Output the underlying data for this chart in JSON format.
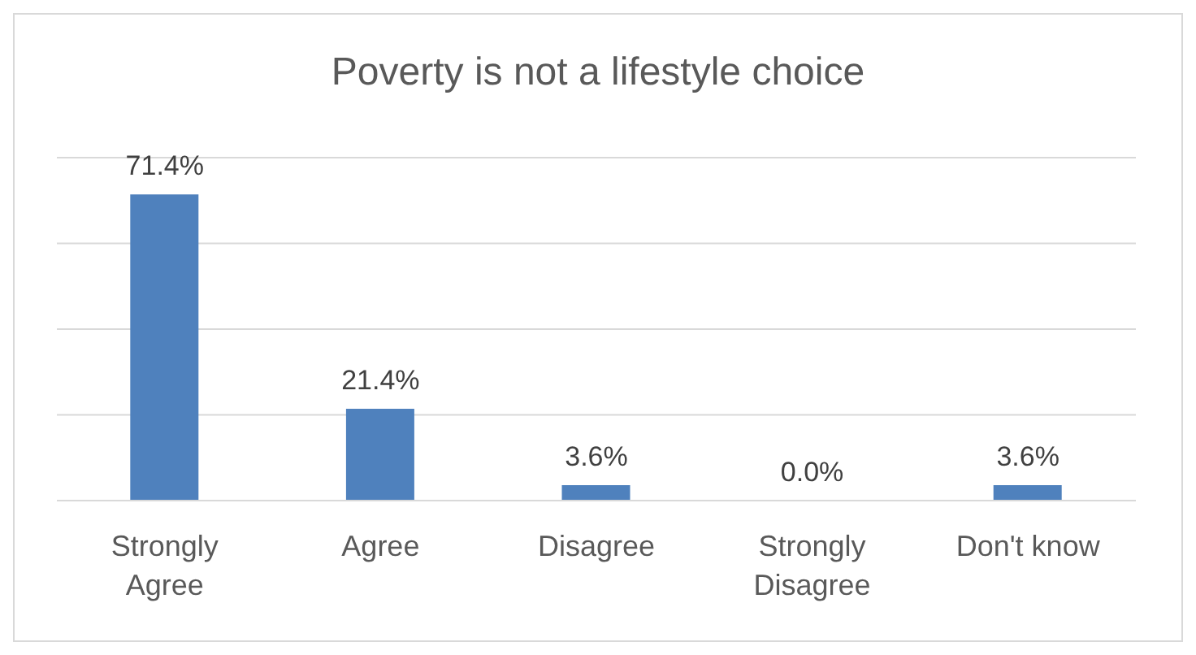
{
  "chart_data": {
    "type": "bar",
    "title": "Poverty is not a lifestyle choice",
    "categories": [
      "Strongly Agree",
      "Agree",
      "Disagree",
      "Strongly Disagree",
      "Don't know"
    ],
    "values": [
      71.4,
      21.4,
      3.6,
      0.0,
      3.6
    ],
    "value_labels": [
      "71.4%",
      "21.4%",
      "3.6%",
      "0.0%",
      "3.6%"
    ],
    "color": "#4f81bd",
    "ylim": [
      0,
      80
    ],
    "yticks": [
      {
        "value": 0,
        "label": null
      },
      {
        "value": 20,
        "label": null
      },
      {
        "value": 40,
        "label": null
      },
      {
        "value": 60,
        "label": null
      },
      {
        "value": 80,
        "label": null
      }
    ],
    "tick_labels": "x",
    "grid": "y"
  }
}
